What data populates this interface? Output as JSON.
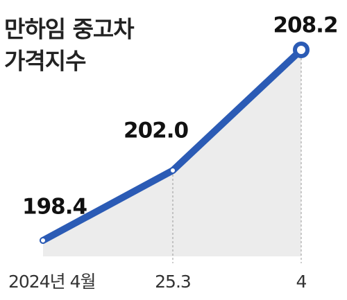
{
  "chart_data": {
    "type": "line",
    "title": [
      "만하임 중고차",
      "가격지수"
    ],
    "categories": [
      "2024년 4월",
      "25.3",
      "4"
    ],
    "series": [
      {
        "color": "#2b5bb5",
        "values": [
          198.4,
          202.0,
          208.2
        ],
        "value_labels": [
          "198.4",
          "202.0",
          "208.2"
        ]
      }
    ]
  }
}
